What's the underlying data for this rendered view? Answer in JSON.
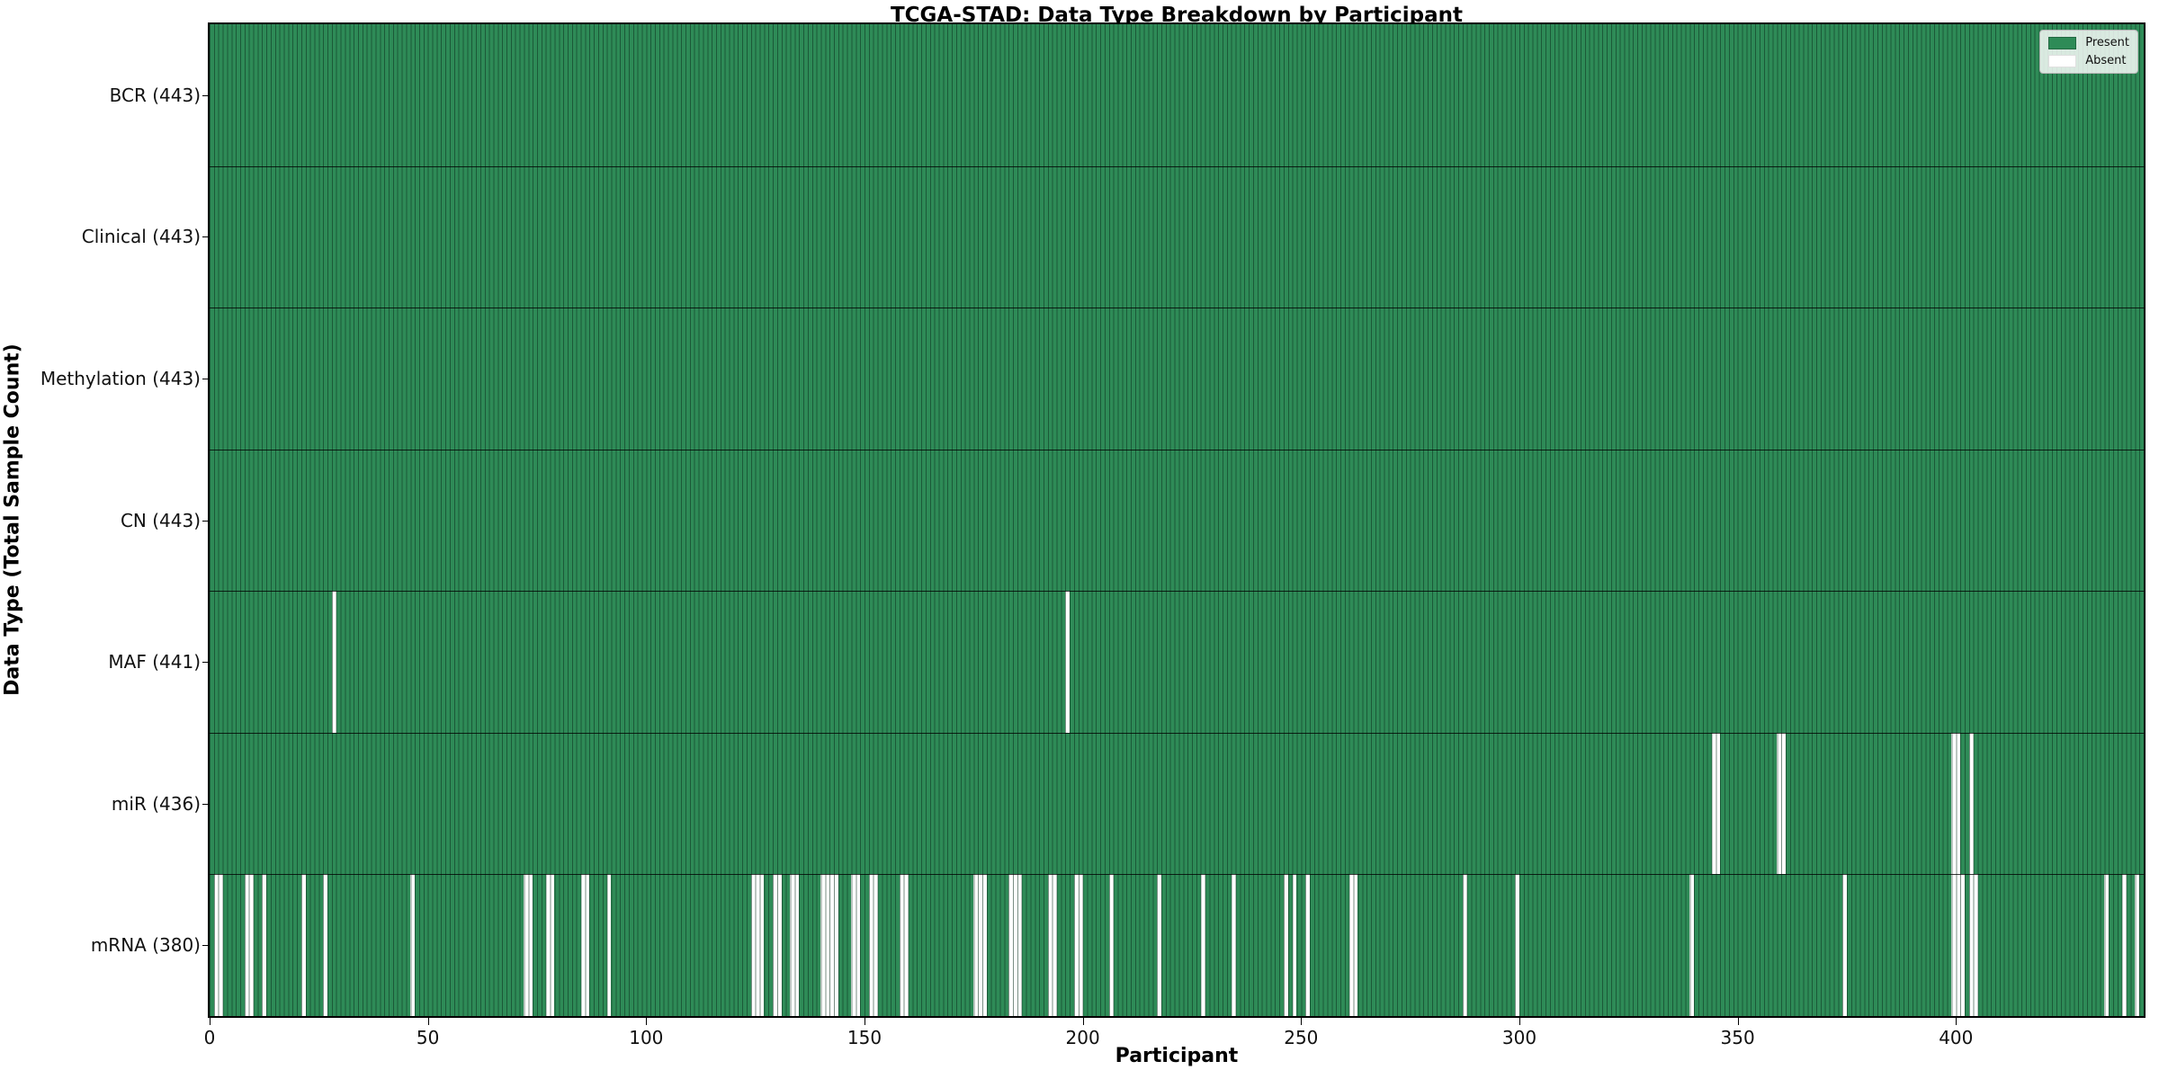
{
  "title": "TCGA-STAD: Data Type Breakdown by Participant",
  "chart_data": {
    "type": "heatmap",
    "title": "TCGA-STAD: Data Type Breakdown by Participant",
    "xlabel": "Participant",
    "ylabel": "Data Type (Total Sample Count)",
    "n_participants": 443,
    "x_range": [
      0,
      443
    ],
    "xticks": [
      0,
      50,
      100,
      150,
      200,
      250,
      300,
      350,
      400
    ],
    "legend": {
      "position": "upper right",
      "entries": [
        {
          "label": "Present",
          "color": "#2e8b57"
        },
        {
          "label": "Absent",
          "color": "#ffffff"
        }
      ]
    },
    "colors": {
      "present": "#2e8b57",
      "absent": "#ffffff",
      "bar_edge": "rgba(12,48,30,0.55)",
      "row_separator": "rgba(0,0,0,0.78)"
    },
    "rows": [
      {
        "label": "BCR (443)",
        "data_type": "BCR",
        "present_count": 443,
        "absent": []
      },
      {
        "label": "Clinical (443)",
        "data_type": "Clinical",
        "present_count": 443,
        "absent": []
      },
      {
        "label": "Methylation (443)",
        "data_type": "Methylation",
        "present_count": 443,
        "absent": []
      },
      {
        "label": "CN (443)",
        "data_type": "CN",
        "present_count": 443,
        "absent": []
      },
      {
        "label": "MAF (441)",
        "data_type": "MAF",
        "present_count": 441,
        "absent": [
          28,
          196
        ]
      },
      {
        "label": "miR (436)",
        "data_type": "miR",
        "present_count": 436,
        "absent": [
          344,
          345,
          359,
          360,
          399,
          400,
          403
        ]
      },
      {
        "label": "mRNA (380)",
        "data_type": "mRNA",
        "present_count": 380,
        "absent": [
          1,
          2,
          8,
          9,
          12,
          21,
          26,
          46,
          72,
          73,
          77,
          78,
          85,
          86,
          91,
          124,
          125,
          126,
          129,
          130,
          133,
          134,
          140,
          141,
          142,
          143,
          147,
          148,
          151,
          152,
          158,
          159,
          175,
          176,
          177,
          183,
          184,
          185,
          192,
          193,
          198,
          199,
          206,
          217,
          227,
          234,
          246,
          248,
          251,
          261,
          262,
          287,
          299,
          339,
          374,
          399,
          400,
          401,
          403,
          404,
          434,
          438,
          441
        ]
      }
    ]
  }
}
